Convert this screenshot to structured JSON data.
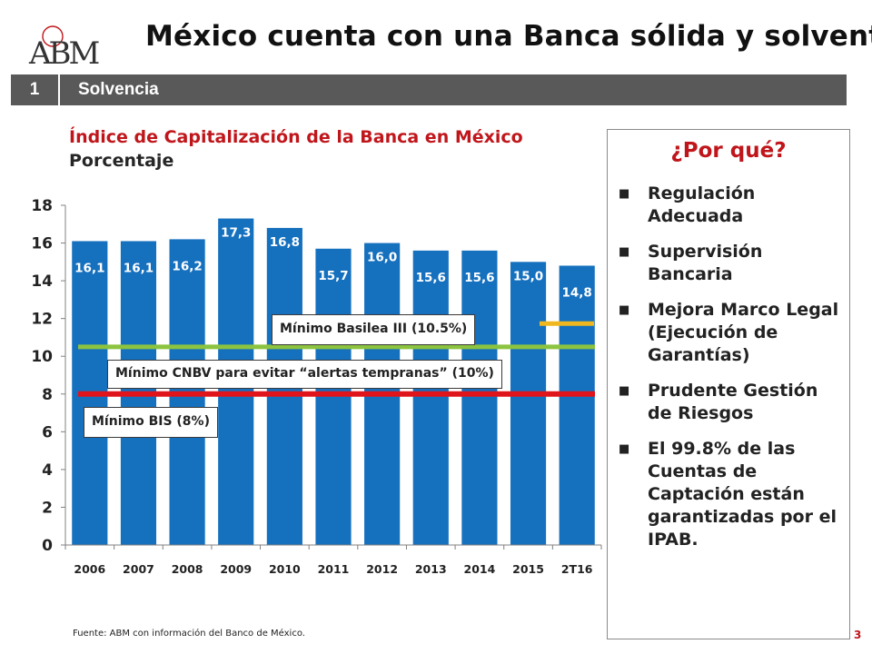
{
  "header": {
    "logo_text": "ABM",
    "title": "México cuenta con una Banca sólida y solvente"
  },
  "section": {
    "number": "1",
    "label": "Solvencia"
  },
  "colors": {
    "bar": "#1570be",
    "bar_label": "#ffffff",
    "basilea_line": "#8cc43f",
    "cnbv_line": "#e0141b",
    "bis_marker": "#f0b81e",
    "accent_red": "#c0161b",
    "section_bar": "#595959"
  },
  "chart_data": {
    "type": "bar",
    "title": "Índice de Capitalización de la Banca en México",
    "subtitle": "Porcentaje",
    "categories": [
      "2006",
      "2007",
      "2008",
      "2009",
      "2010",
      "2011",
      "2012",
      "2013",
      "2014",
      "2015",
      "2T16"
    ],
    "values": [
      16.1,
      16.1,
      16.2,
      17.3,
      16.8,
      15.7,
      16.0,
      15.6,
      15.6,
      15.0,
      14.8
    ],
    "value_labels": [
      "16,1",
      "16,1",
      "16,2",
      "17,3",
      "16,8",
      "15,7",
      "16,0",
      "15,6",
      "15,6",
      "15,0",
      "14,8"
    ],
    "ylim": [
      0,
      18
    ],
    "yticks": [
      "0",
      "2",
      "4",
      "6",
      "8",
      "10",
      "12",
      "14",
      "16",
      "18"
    ],
    "grid": false,
    "reference_lines": [
      {
        "label": "Mínimo Basilea III (10.5%)",
        "value": 10.5
      },
      {
        "label": "Mínimo CNBV para evitar “alertas tempranas” (10%)",
        "value": 10
      },
      {
        "label": "Mínimo BIS (8%)",
        "value": 8
      }
    ]
  },
  "why": {
    "title": "¿Por qué?",
    "items": [
      "Regulación Adecuada",
      "Supervisión Bancaria",
      "Mejora Marco Legal (Ejecución de Garantías)",
      "Prudente Gestión de Riesgos",
      "El 99.8% de las Cuentas de Captación están garantizadas por el IPAB."
    ]
  },
  "footer": {
    "source": "Fuente: ABM con información del Banco de México.",
    "page_number": "3"
  }
}
